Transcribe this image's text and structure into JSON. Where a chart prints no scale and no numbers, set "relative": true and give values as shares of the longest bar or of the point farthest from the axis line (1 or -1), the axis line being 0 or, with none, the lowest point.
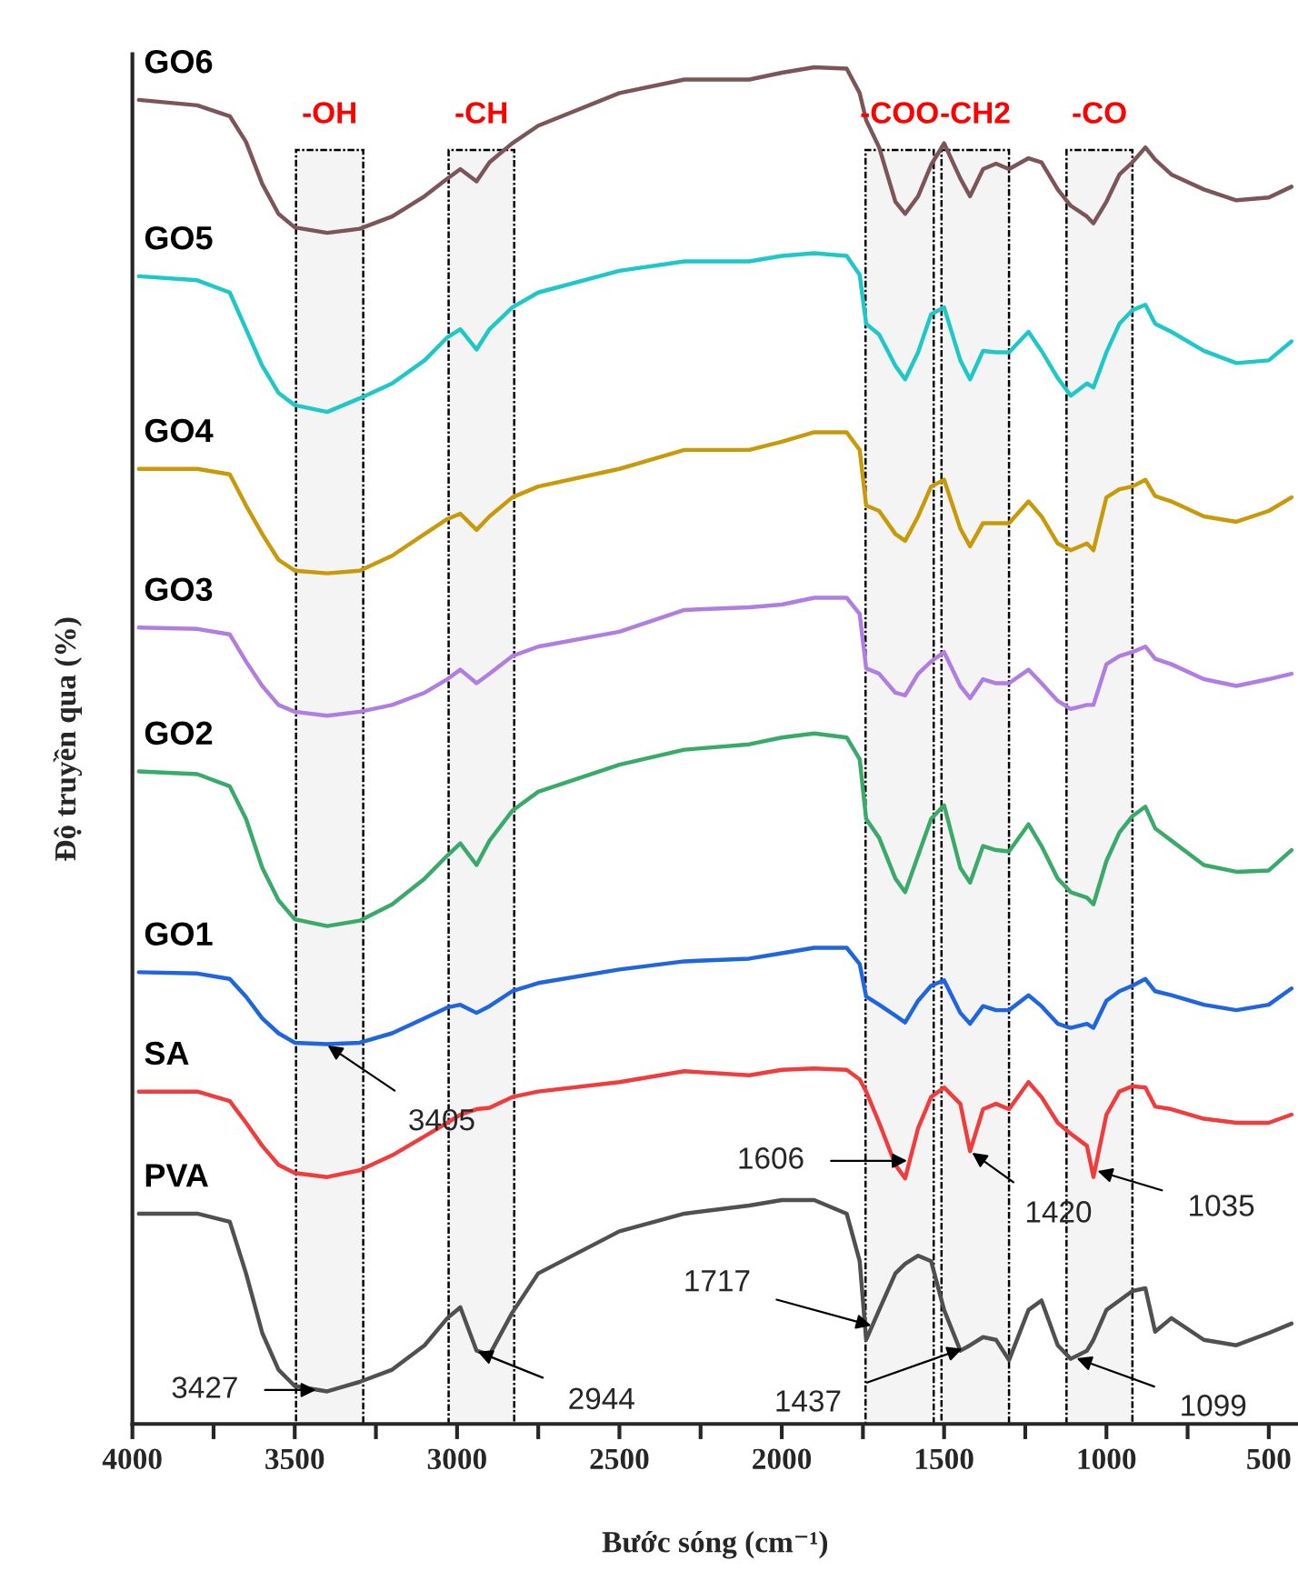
{
  "chart_data": {
    "type": "line",
    "relative": true,
    "xlabel": "Bước sóng (cm⁻¹)",
    "ylabel": "Độ truyền qua (%)",
    "xlim": [
      4000,
      410
    ],
    "xticks": [
      4000,
      {
        "value": 3750,
        "label": null
      },
      3500,
      {
        "value": 3250,
        "label": null
      },
      3000,
      {
        "value": 2750,
        "label": null
      },
      2500,
      {
        "value": 2250,
        "label": null
      },
      2000,
      {
        "value": 1750,
        "label": null
      },
      1500,
      {
        "value": 1250,
        "label": null
      },
      1000,
      {
        "value": 750,
        "label": null
      },
      500
    ],
    "tick_labels": "x",
    "grid": false,
    "x": [
      3980,
      3800,
      3700,
      3650,
      3600,
      3550,
      3500,
      3400,
      3300,
      3200,
      3100,
      3030,
      2990,
      2940,
      2900,
      2830,
      2750,
      2500,
      2300,
      2100,
      2000,
      1900,
      1800,
      1760,
      1740,
      1700,
      1650,
      1620,
      1580,
      1540,
      1500,
      1450,
      1420,
      1380,
      1340,
      1300,
      1240,
      1200,
      1150,
      1110,
      1060,
      1040,
      1000,
      960,
      920,
      880,
      850,
      800,
      700,
      600,
      500,
      430
    ],
    "series": [
      {
        "name": "GO6",
        "color": "#7b5558",
        "values": [
          0.976,
          0.972,
          0.964,
          0.945,
          0.914,
          0.892,
          0.882,
          0.878,
          0.881,
          0.89,
          0.905,
          0.918,
          0.925,
          0.916,
          0.93,
          0.944,
          0.957,
          0.981,
          0.991,
          0.991,
          0.996,
          1.0,
          0.999,
          0.981,
          0.961,
          0.941,
          0.901,
          0.892,
          0.905,
          0.928,
          0.944,
          0.918,
          0.905,
          0.925,
          0.929,
          0.925,
          0.933,
          0.93,
          0.91,
          0.898,
          0.89,
          0.885,
          0.901,
          0.921,
          0.93,
          0.941,
          0.932,
          0.921,
          0.91,
          0.902,
          0.904,
          0.912
        ]
      },
      {
        "name": "GO5",
        "color": "#1ec8c8",
        "values": [
          0.846,
          0.843,
          0.834,
          0.807,
          0.78,
          0.76,
          0.751,
          0.746,
          0.756,
          0.767,
          0.784,
          0.801,
          0.807,
          0.792,
          0.807,
          0.823,
          0.834,
          0.85,
          0.857,
          0.857,
          0.861,
          0.863,
          0.861,
          0.847,
          0.811,
          0.803,
          0.78,
          0.77,
          0.79,
          0.818,
          0.823,
          0.784,
          0.77,
          0.791,
          0.79,
          0.79,
          0.805,
          0.791,
          0.771,
          0.758,
          0.767,
          0.764,
          0.79,
          0.811,
          0.821,
          0.825,
          0.811,
          0.805,
          0.791,
          0.782,
          0.784,
          0.798
        ]
      },
      {
        "name": "GO4",
        "color": "#c89a0a",
        "values": [
          0.704,
          0.704,
          0.7,
          0.677,
          0.656,
          0.637,
          0.629,
          0.627,
          0.629,
          0.64,
          0.656,
          0.667,
          0.671,
          0.659,
          0.669,
          0.683,
          0.691,
          0.704,
          0.718,
          0.718,
          0.724,
          0.731,
          0.731,
          0.718,
          0.677,
          0.673,
          0.656,
          0.651,
          0.669,
          0.691,
          0.696,
          0.66,
          0.647,
          0.664,
          0.664,
          0.664,
          0.68,
          0.669,
          0.649,
          0.644,
          0.649,
          0.644,
          0.683,
          0.689,
          0.691,
          0.696,
          0.684,
          0.68,
          0.669,
          0.665,
          0.673,
          0.683
        ]
      },
      {
        "name": "GO3",
        "color": "#b07ee0",
        "values": [
          0.587,
          0.586,
          0.582,
          0.562,
          0.544,
          0.53,
          0.525,
          0.522,
          0.525,
          0.53,
          0.539,
          0.549,
          0.556,
          0.546,
          0.553,
          0.566,
          0.573,
          0.584,
          0.6,
          0.602,
          0.604,
          0.609,
          0.609,
          0.597,
          0.557,
          0.553,
          0.539,
          0.537,
          0.553,
          0.562,
          0.569,
          0.544,
          0.535,
          0.549,
          0.546,
          0.546,
          0.556,
          0.546,
          0.533,
          0.527,
          0.53,
          0.53,
          0.56,
          0.566,
          0.569,
          0.573,
          0.564,
          0.56,
          0.549,
          0.544,
          0.549,
          0.553
        ]
      },
      {
        "name": "GO2",
        "color": "#3aaa6a",
        "values": [
          0.481,
          0.479,
          0.47,
          0.446,
          0.41,
          0.386,
          0.372,
          0.367,
          0.371,
          0.383,
          0.402,
          0.419,
          0.428,
          0.412,
          0.43,
          0.452,
          0.466,
          0.486,
          0.497,
          0.501,
          0.506,
          0.509,
          0.506,
          0.49,
          0.446,
          0.432,
          0.402,
          0.392,
          0.419,
          0.446,
          0.456,
          0.41,
          0.399,
          0.426,
          0.423,
          0.422,
          0.442,
          0.426,
          0.402,
          0.392,
          0.388,
          0.383,
          0.415,
          0.436,
          0.448,
          0.455,
          0.439,
          0.43,
          0.412,
          0.407,
          0.408,
          0.423
        ]
      },
      {
        "name": "GO1",
        "color": "#1f65e0",
        "values": [
          0.333,
          0.332,
          0.328,
          0.315,
          0.299,
          0.288,
          0.281,
          0.28,
          0.281,
          0.288,
          0.299,
          0.307,
          0.309,
          0.303,
          0.308,
          0.319,
          0.325,
          0.335,
          0.341,
          0.343,
          0.347,
          0.351,
          0.351,
          0.339,
          0.315,
          0.309,
          0.301,
          0.296,
          0.312,
          0.323,
          0.327,
          0.303,
          0.295,
          0.308,
          0.305,
          0.305,
          0.316,
          0.308,
          0.295,
          0.292,
          0.295,
          0.292,
          0.312,
          0.319,
          0.323,
          0.328,
          0.319,
          0.316,
          0.309,
          0.305,
          0.309,
          0.321
        ]
      },
      {
        "name": "SA",
        "color": "#f03c3c",
        "values": [
          0.245,
          0.245,
          0.238,
          0.222,
          0.205,
          0.191,
          0.185,
          0.182,
          0.187,
          0.198,
          0.212,
          0.222,
          0.228,
          0.232,
          0.233,
          0.241,
          0.245,
          0.252,
          0.26,
          0.257,
          0.261,
          0.262,
          0.261,
          0.254,
          0.245,
          0.222,
          0.191,
          0.181,
          0.218,
          0.241,
          0.248,
          0.236,
          0.201,
          0.232,
          0.236,
          0.232,
          0.252,
          0.241,
          0.222,
          0.214,
          0.205,
          0.182,
          0.228,
          0.245,
          0.249,
          0.248,
          0.234,
          0.232,
          0.225,
          0.222,
          0.222,
          0.228
        ]
      },
      {
        "name": "PVA",
        "color": "#505050",
        "values": [
          0.155,
          0.155,
          0.149,
          0.111,
          0.067,
          0.04,
          0.028,
          0.024,
          0.031,
          0.04,
          0.058,
          0.078,
          0.086,
          0.054,
          0.051,
          0.082,
          0.111,
          0.142,
          0.155,
          0.161,
          0.165,
          0.165,
          0.155,
          0.12,
          0.062,
          0.084,
          0.111,
          0.118,
          0.124,
          0.12,
          0.084,
          0.054,
          0.058,
          0.064,
          0.062,
          0.047,
          0.084,
          0.091,
          0.058,
          0.048,
          0.054,
          0.062,
          0.084,
          0.091,
          0.098,
          0.1,
          0.068,
          0.078,
          0.062,
          0.058,
          0.067,
          0.074
        ]
      }
    ],
    "bands": [
      {
        "axis": "x",
        "from": 3496,
        "to": 3289,
        "label": "-OH"
      },
      {
        "axis": "x",
        "from": 3026,
        "to": 2824,
        "label": "-CH"
      },
      {
        "axis": "x",
        "from": 1742,
        "to": 1532,
        "label": "-COO"
      },
      {
        "axis": "x",
        "from": 1508,
        "to": 1300,
        "label": "-CH2"
      },
      {
        "axis": "x",
        "from": 1123,
        "to": 920,
        "label": "-CO"
      }
    ],
    "annotations": [
      {
        "text": "3405",
        "x": 3405,
        "y": 0.28
      },
      {
        "text": "3427",
        "x": 3427,
        "y": 0.025
      },
      {
        "text": "2944",
        "x": 2944,
        "y": 0.054
      },
      {
        "text": "1606",
        "x": 1606,
        "y": 0.194
      },
      {
        "text": "1420",
        "x": 1420,
        "y": 0.201
      },
      {
        "text": "1035",
        "x": 1035,
        "y": 0.187
      },
      {
        "text": "1717",
        "x": 1717,
        "y": 0.072
      },
      {
        "text": "1437",
        "x": 1437,
        "y": 0.056
      },
      {
        "text": "1099",
        "x": 1099,
        "y": 0.049
      }
    ]
  }
}
